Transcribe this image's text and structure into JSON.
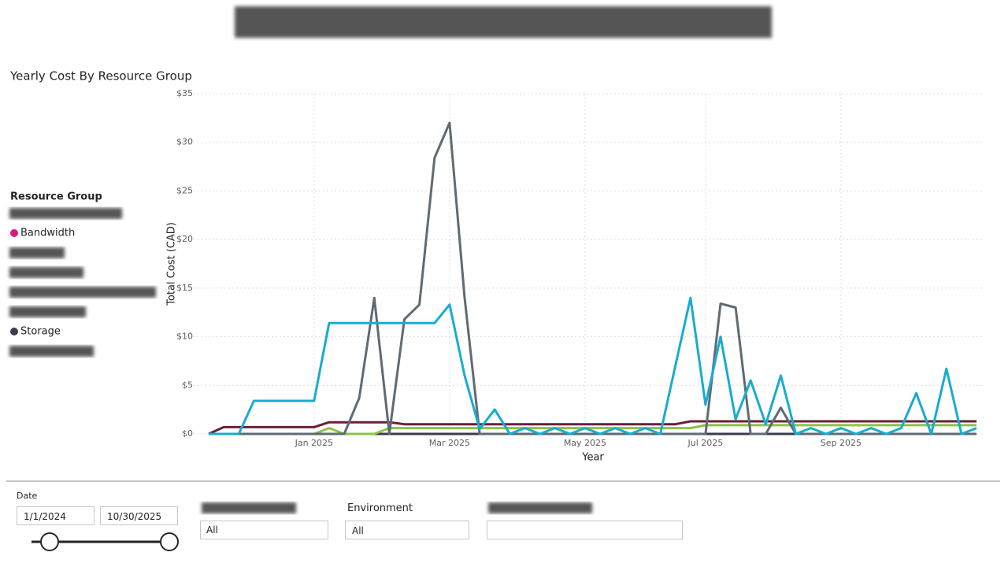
{
  "chart_data": {
    "type": "line",
    "title": "Yearly Cost By Resource Group",
    "y_label": "Total Cost (CAD)",
    "x_label": "Year",
    "legend_title": "Resource Group",
    "grid": true,
    "ylim": [
      0,
      35
    ],
    "yticks": [
      {
        "value": 0,
        "label": "$0"
      },
      {
        "value": 5,
        "label": "$5"
      },
      {
        "value": 10,
        "label": "$10"
      },
      {
        "value": 15,
        "label": "$15"
      },
      {
        "value": 20,
        "label": "$20"
      },
      {
        "value": 25,
        "label": "$25"
      },
      {
        "value": 30,
        "label": "$30"
      },
      {
        "value": 35,
        "label": "$35"
      }
    ],
    "x": [
      null,
      null,
      null,
      null,
      null,
      null,
      null,
      "Jan 2025",
      null,
      null,
      null,
      null,
      null,
      null,
      null,
      null,
      "Mar 2025",
      null,
      null,
      null,
      null,
      null,
      null,
      null,
      null,
      "May 2025",
      null,
      null,
      null,
      null,
      null,
      null,
      null,
      "Jul 2025",
      null,
      null,
      null,
      null,
      null,
      null,
      null,
      null,
      "Sep 2025",
      null,
      null,
      null,
      null,
      null,
      null,
      null,
      null,
      null
    ],
    "series": [
      {
        "name": "Bandwidth",
        "color": "#e0177a",
        "values": [
          0,
          0,
          0,
          0,
          0,
          0,
          0,
          0,
          0,
          0,
          0,
          0,
          0,
          0,
          0,
          0,
          0,
          0,
          0,
          0,
          0,
          0,
          0,
          0,
          0,
          0,
          0,
          0,
          0,
          0,
          0,
          0,
          0,
          0,
          0,
          0,
          0,
          0,
          0,
          0,
          0,
          0,
          0,
          0,
          0,
          0,
          0,
          0,
          0,
          0,
          0,
          0
        ]
      },
      {
        "name": "Storage",
        "color": "#3a3d4a",
        "values": [
          0,
          0,
          0,
          0,
          0,
          0,
          0,
          0,
          0,
          0,
          0,
          0,
          0,
          0,
          0,
          0,
          0,
          0,
          0,
          0,
          0,
          0,
          0,
          0,
          0,
          0,
          0,
          0,
          0,
          0,
          0,
          0,
          0,
          0,
          0,
          0,
          0,
          0,
          0,
          0,
          0,
          0,
          0,
          0,
          0,
          0,
          0,
          0,
          0,
          0,
          0,
          0
        ]
      },
      {
        "color": "#6b1f3a",
        "values": [
          0,
          0.7,
          0.7,
          0.7,
          0.7,
          0.7,
          0.7,
          0.7,
          1.2,
          1.2,
          1.2,
          1.2,
          1.2,
          1,
          1,
          1,
          1,
          1,
          1,
          1,
          1,
          1,
          1,
          1,
          1,
          1,
          1,
          1,
          1,
          1,
          1,
          1,
          1.3,
          1.3,
          1.3,
          1.3,
          1.3,
          1.3,
          1.3,
          1.3,
          1.3,
          1.3,
          1.3,
          1.3,
          1.3,
          1.3,
          1.3,
          1.3,
          1.3,
          1.3,
          1.3,
          1.3
        ]
      },
      {
        "color": "#8bc34a",
        "values": [
          0,
          0,
          0,
          0,
          0,
          0,
          0,
          0,
          0.6,
          0,
          0,
          0,
          0.6,
          0.6,
          0.6,
          0.6,
          0.6,
          0.6,
          0.6,
          0.6,
          0.6,
          0.6,
          0.6,
          0.6,
          0.6,
          0.6,
          0.6,
          0.6,
          0.6,
          0.6,
          0.6,
          0.6,
          0.6,
          0.9,
          0.9,
          0.9,
          0.9,
          0.9,
          0.9,
          0.9,
          0.9,
          0.9,
          0.9,
          0.9,
          0.9,
          0.9,
          0.9,
          0.9,
          0.9,
          0.9,
          0.9,
          0.9
        ]
      },
      {
        "color": "#5f6b73",
        "values": [
          0,
          0,
          0,
          0,
          0,
          0,
          0,
          0,
          0,
          0,
          3.7,
          14,
          0,
          11.8,
          13.3,
          28.4,
          32,
          14,
          0,
          0,
          0,
          0,
          0,
          0,
          0,
          0,
          0,
          0,
          0,
          0,
          0,
          0,
          0,
          0,
          13.4,
          13,
          0,
          0,
          2.7,
          0,
          0,
          0,
          0,
          0,
          0,
          0,
          0,
          0,
          0,
          0,
          0,
          0
        ]
      },
      {
        "color": "#1aabd0",
        "values": [
          0,
          0,
          0,
          3.4,
          3.4,
          3.4,
          3.4,
          3.4,
          11.4,
          11.4,
          11.4,
          11.4,
          11.4,
          11.4,
          11.4,
          11.4,
          13.3,
          6,
          0.5,
          2.5,
          0,
          0.6,
          0,
          0.6,
          0,
          0.6,
          0,
          0.6,
          0,
          0.6,
          0,
          7,
          14,
          3,
          10,
          1.5,
          5.5,
          1,
          6,
          0,
          0.6,
          0,
          0.6,
          0,
          0.6,
          0,
          0.6,
          4.2,
          0,
          6.7,
          0,
          0.6
        ]
      }
    ]
  },
  "filters": {
    "date_label": "Date",
    "date_start": "1/1/2024",
    "date_end": "10/30/2025",
    "environment_label": "Environment",
    "environment_value": "All",
    "other_value": "All"
  }
}
